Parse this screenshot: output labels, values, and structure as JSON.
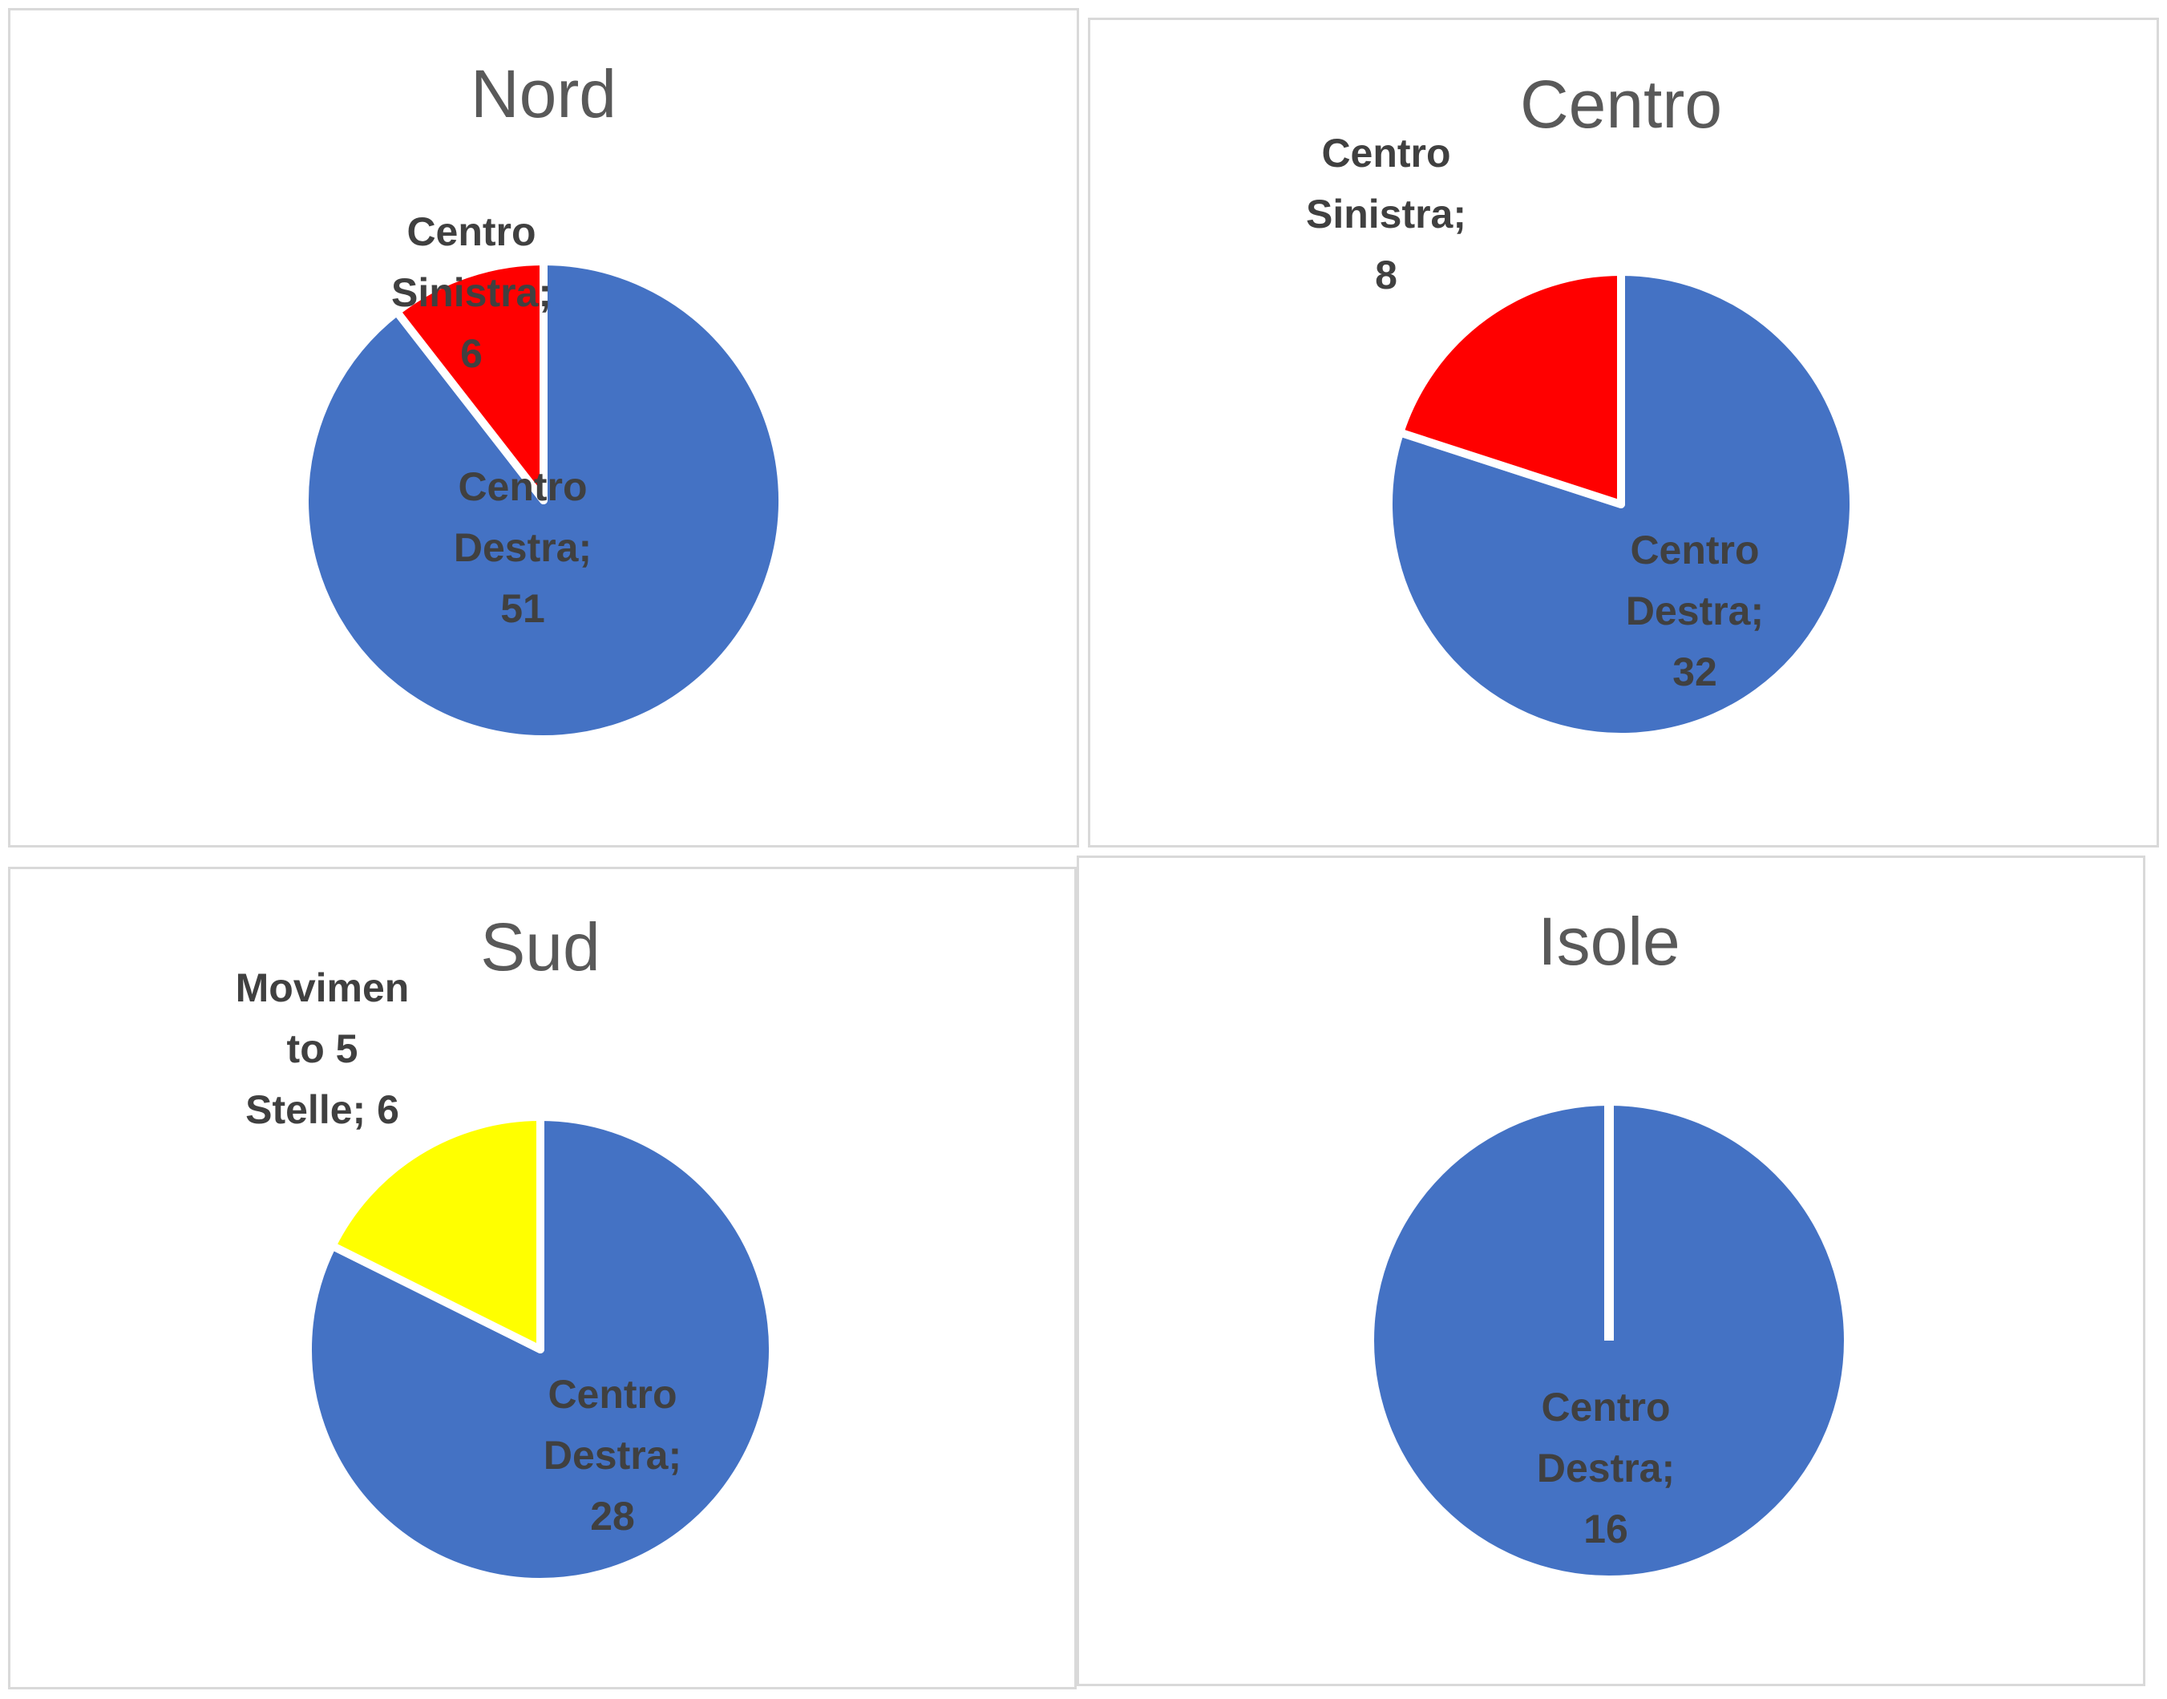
{
  "chart_data": [
    {
      "type": "pie",
      "title": "Nord",
      "categories": [
        "Centro Destra",
        "Centro Sinistra"
      ],
      "values": [
        51,
        6
      ],
      "value_labels": [
        "Centro Destra; 51",
        "Centro Sinistra; 6"
      ],
      "colors": [
        "#4472c4",
        "#ff0000"
      ]
    },
    {
      "type": "pie",
      "title": "Centro",
      "categories": [
        "Centro Destra",
        "Centro Sinistra"
      ],
      "values": [
        32,
        8
      ],
      "value_labels": [
        "Centro Destra; 32",
        "Centro Sinistra; 8"
      ],
      "colors": [
        "#4472c4",
        "#ff0000"
      ]
    },
    {
      "type": "pie",
      "title": "Sud",
      "categories": [
        "Centro Destra",
        "Movimento 5 Stelle"
      ],
      "values": [
        28,
        6
      ],
      "value_labels": [
        "Centro Destra; 28",
        "Movimento 5 Stelle; 6"
      ],
      "colors": [
        "#4472c4",
        "#ffff00"
      ]
    },
    {
      "type": "pie",
      "title": "Isole",
      "categories": [
        "Centro Destra"
      ],
      "values": [
        16
      ],
      "value_labels": [
        "Centro Destra; 16"
      ],
      "colors": [
        "#4472c4"
      ]
    }
  ]
}
